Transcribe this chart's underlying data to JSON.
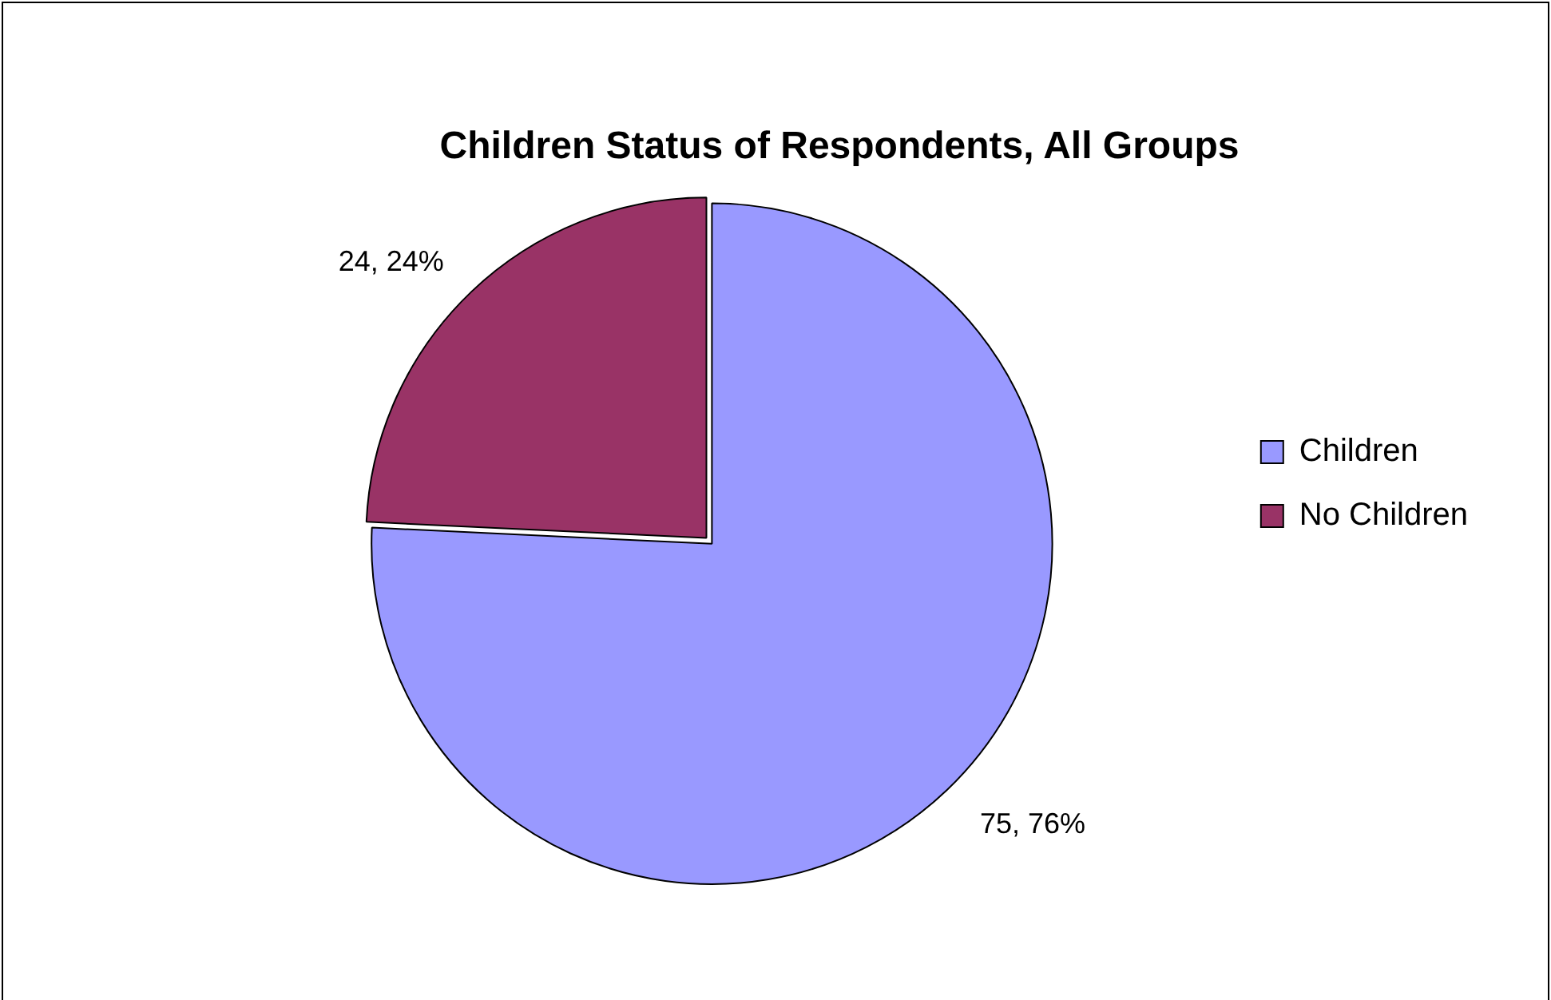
{
  "chart_data": {
    "type": "pie",
    "title": "Children Status of Respondents, All Groups",
    "categories": [
      "Children",
      "No Children"
    ],
    "values": [
      75,
      24
    ],
    "colors": [
      "#9999ff",
      "#993366"
    ],
    "value_labels": [
      "75, 76%",
      "24, 24%"
    ],
    "legend": "right"
  }
}
